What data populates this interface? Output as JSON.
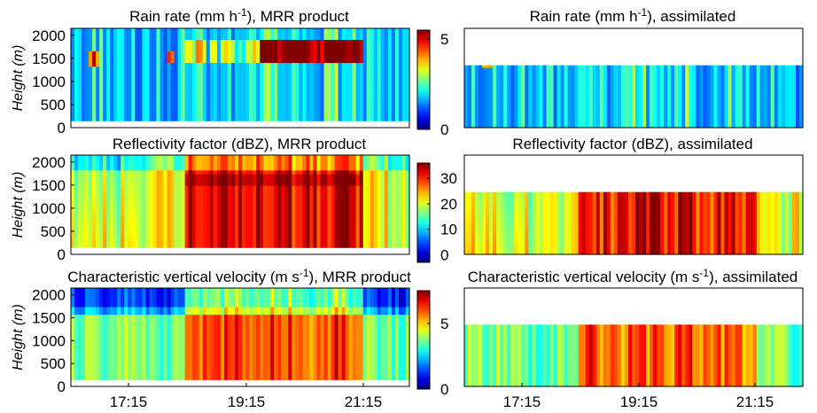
{
  "figure": {
    "background": "#ffffff",
    "colormap": "jet"
  },
  "chart_data": [
    {
      "type": "heatmap",
      "title": "Rain rate (mm h-1), MRR product",
      "title_parts": {
        "pre": "Rain rate (mm h",
        "sup": "-1",
        "post": "), MRR product"
      },
      "ylabel": "Height (m)",
      "yticks": [
        "2000",
        "1500",
        "1000",
        "500",
        "0"
      ],
      "xticks": [],
      "ylim": [
        0,
        2150
      ],
      "data_top_m": 2150,
      "colorbar": {
        "ticks": [
          "5",
          "0"
        ],
        "range": [
          0,
          5.5
        ]
      },
      "field": "rain"
    },
    {
      "type": "heatmap",
      "title": "Rain rate (mm h-1), assimilated",
      "title_parts": {
        "pre": "Rain rate (mm h",
        "sup": "-1",
        "post": "), assimilated"
      },
      "ylabel": "",
      "yticks": [],
      "xticks": [],
      "ylim": [
        0,
        2150
      ],
      "data_top_m": 1350,
      "colorbar": null,
      "field": "rain"
    },
    {
      "type": "heatmap",
      "title": "Reflectivity factor (dBZ), MRR product",
      "title_parts": {
        "pre": "Reflectivity factor (dBZ), MRR product",
        "sup": "",
        "post": ""
      },
      "ylabel": "Height (m)",
      "yticks": [
        "2000",
        "1500",
        "1000",
        "500",
        "0"
      ],
      "xticks": [],
      "ylim": [
        0,
        2150
      ],
      "data_top_m": 2150,
      "colorbar": {
        "ticks": [
          "30",
          "20",
          "10",
          "0"
        ],
        "range": [
          -3,
          36
        ]
      },
      "field": "refl"
    },
    {
      "type": "heatmap",
      "title": "Reflectivity factor (dBZ), assimilated",
      "title_parts": {
        "pre": "Reflectivity factor (dBZ), assimilated",
        "sup": "",
        "post": ""
      },
      "ylabel": "",
      "yticks": [],
      "xticks": [],
      "ylim": [
        0,
        2150
      ],
      "data_top_m": 1350,
      "colorbar": null,
      "field": "refl"
    },
    {
      "type": "heatmap",
      "title": "Characteristic vertical velocity (m s-1), MRR product",
      "title_parts": {
        "pre": "Characteristic vertical velocity (m s",
        "sup": "-1",
        "post": "), MRR product"
      },
      "ylabel": "Height (m)",
      "yticks": [
        "2000",
        "1500",
        "1000",
        "500",
        "0"
      ],
      "xticks": [
        "17:15",
        "19:15",
        "21:15"
      ],
      "ylim": [
        0,
        2150
      ],
      "data_top_m": 2150,
      "colorbar": {
        "ticks": [
          "5",
          "0"
        ],
        "range": [
          0,
          7.5
        ]
      },
      "field": "vel"
    },
    {
      "type": "heatmap",
      "title": "Characteristic vertical velocity (m s-1), assimilated",
      "title_parts": {
        "pre": "Characteristic vertical velocity (m s",
        "sup": "-1",
        "post": "), assimilated"
      },
      "ylabel": "",
      "yticks": [],
      "xticks": [
        "17:15",
        "19:15",
        "21:15"
      ],
      "ylim": [
        0,
        2150
      ],
      "data_top_m": 1350,
      "colorbar": null,
      "field": "vel"
    }
  ]
}
